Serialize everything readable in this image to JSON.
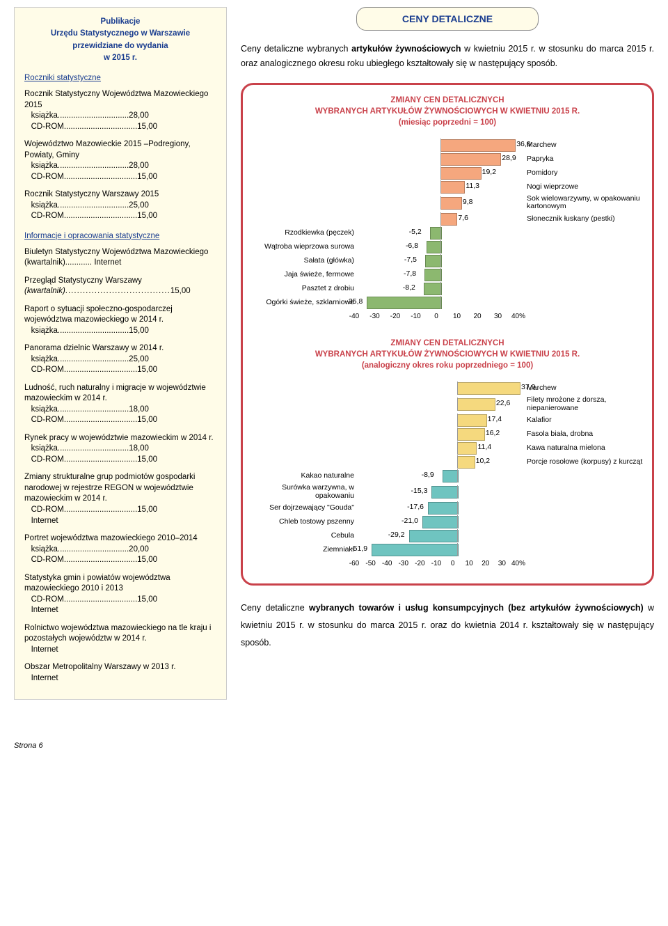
{
  "leftPanel": {
    "hdr1": "Publikacje",
    "hdr2": "Urzędu Statystycznego w Warszawie",
    "hdr3": "przewidziane do wydania",
    "hdr4": "w 2015 r.",
    "sect1": "Roczniki statystyczne",
    "pubs1": [
      {
        "t": "Rocznik Statystyczny Województwa Mazowieckiego 2015",
        "l1": "książka",
        "p1": "28,00",
        "l2": "CD-ROM",
        "p2": "15,00"
      },
      {
        "t": "Województwo Mazowieckie 2015 –Podregiony, Powiaty, Gminy",
        "l1": "książka",
        "p1": "28,00",
        "l2": "CD-ROM",
        "p2": "15,00"
      },
      {
        "t": "Rocznik Statystyczny Warszawy 2015",
        "l1": "książka",
        "p1": "25,00",
        "l2": "CD-ROM",
        "p2": "15,00"
      }
    ],
    "sect2": "Informacje i opracowania statystyczne",
    "pubs2": [
      {
        "t": "Biuletyn Statystyczny Województwa Mazowieckiego (kwartalnik)............ Internet"
      },
      {
        "t": "Przegląd Statystyczny Warszawy",
        "it": "(kwartalnik)",
        "p1": "15,00"
      },
      {
        "t": "Raport o sytuacji społeczno-gospodarczej województwa mazowieckiego w 2014 r.",
        "l1": "książka",
        "p1": "15,00"
      },
      {
        "t": "Panorama dzielnic Warszawy w 2014 r.",
        "l1": "książka",
        "p1": "25,00",
        "l2": "CD-ROM",
        "p2": "15,00"
      },
      {
        "t": "Ludność, ruch naturalny i migracje w województwie mazowieckim w 2014 r.",
        "l1": "książka",
        "p1": "18,00",
        "l2": "CD-ROM",
        "p2": "15,00"
      },
      {
        "t": "Rynek pracy w województwie mazowieckim w 2014 r.",
        "l1": "książka",
        "p1": "18,00",
        "l2": "CD-ROM",
        "p2": "15,00"
      },
      {
        "t": "Zmiany strukturalne grup podmiotów gospodarki narodowej w rejestrze REGON w województwie mazowieckim w 2014 r.",
        "l2": "CD-ROM",
        "p2": "15,00",
        "l3": "Internet"
      },
      {
        "t": "Portret województwa mazowieckiego 2010–2014",
        "l1": "książka",
        "p1": "20,00",
        "l2": "CD-ROM",
        "p2": "15,00"
      },
      {
        "t": "Statystyka gmin i powiatów województwa mazowieckiego 2010 i 2013",
        "l2": "CD-ROM",
        "p2": "15,00",
        "l3": "Internet"
      },
      {
        "t": "Rolnictwo województwa mazowieckiego na tle kraju i pozostałych województw w 2014 r.",
        "l3": "Internet"
      },
      {
        "t": "Obszar Metropolitalny Warszawy w 2013 r.",
        "l3": "Internet"
      }
    ]
  },
  "rightPanel": {
    "titleBox": "CENY DETALICZNE",
    "intro": "Ceny detaliczne wybranych artykułów żywnościowych w kwietniu 2015 r. w stosunku do marca 2015 r. oraz analogicznego okresu roku ubiegłego kształtowały się w następujący sposób.",
    "chart1": {
      "titleA": "ZMIANY CEN DETALICZNYCH",
      "titleB": "WYBRANYCH ARTYKUŁÓW ŻYWNOŚCIOWYCH W KWIETNIU 2015 R.",
      "titleC": "(miesiąc poprzedni = 100)",
      "xmin": -40,
      "xmax": 40,
      "posColor": "#f5a77e",
      "negColor": "#8cb86f",
      "ticks": [
        -40,
        -30,
        -20,
        -10,
        0,
        10,
        20,
        30,
        "40%"
      ],
      "bars": [
        {
          "v": 36.0,
          "rl": "Marchew"
        },
        {
          "v": 28.9,
          "rl": "Papryka"
        },
        {
          "v": 19.2,
          "rl": "Pomidory"
        },
        {
          "v": 11.3,
          "rl": "Nogi wieprzowe"
        },
        {
          "v": 9.8,
          "rl": "Sok wielowarzywny, w opakowaniu kartonowym"
        },
        {
          "v": 7.6,
          "rl": "Słonecznik łuskany (pestki)"
        },
        {
          "v": -5.2,
          "ll": "Rzodkiewka (pęczek)"
        },
        {
          "v": -6.8,
          "ll": "Wątroba wieprzowa surowa"
        },
        {
          "v": -7.5,
          "ll": "Sałata (główka)"
        },
        {
          "v": -7.8,
          "ll": "Jaja świeże, fermowe"
        },
        {
          "v": -8.2,
          "ll": "Pasztet z drobiu"
        },
        {
          "v": -35.8,
          "ll": "Ogórki świeże, szklarniowe"
        }
      ]
    },
    "chart2": {
      "titleA": "ZMIANY CEN DETALICZNYCH",
      "titleB": "WYBRANYCH ARTYKUŁÓW ŻYWNOŚCIOWYCH W KWIETNIU 2015 R.",
      "titleC": "(analogiczny okres roku poprzedniego = 100)",
      "xmin": -60,
      "xmax": 40,
      "posColor": "#f5d97e",
      "negColor": "#6fc4c0",
      "ticks": [
        -60,
        -50,
        -40,
        -30,
        -20,
        -10,
        0,
        10,
        20,
        30,
        "40%"
      ],
      "bars": [
        {
          "v": 37.9,
          "rl": "Marchew"
        },
        {
          "v": 22.6,
          "rl": "Filety mrożone z dorsza, niepanierowane"
        },
        {
          "v": 17.4,
          "rl": "Kalafior"
        },
        {
          "v": 16.2,
          "rl": "Fasola biała, drobna"
        },
        {
          "v": 11.4,
          "rl": "Kawa naturalna mielona"
        },
        {
          "v": 10.2,
          "rl": "Porcje rosołowe (korpusy) z kurcząt"
        },
        {
          "v": -8.9,
          "ll": "Kakao naturalne"
        },
        {
          "v": -15.3,
          "ll": "Surówka warzywna, w opakowaniu"
        },
        {
          "v": -17.6,
          "ll": "Ser dojrzewający \"Gouda\""
        },
        {
          "v": -21.0,
          "ll": "Chleb tostowy pszenny"
        },
        {
          "v": -29.2,
          "ll": "Cebula"
        },
        {
          "v": -51.9,
          "ll": "Ziemniaki"
        }
      ]
    },
    "bottom": "Ceny detaliczne wybranych towarów i usług konsumpcyjnych (bez artykułów żywnościowych) w kwietniu 2015 r. w stosunku do marca 2015 r. oraz do kwietnia 2014 r. kształtowały się w następujący sposób."
  },
  "footer": "Strona 6"
}
